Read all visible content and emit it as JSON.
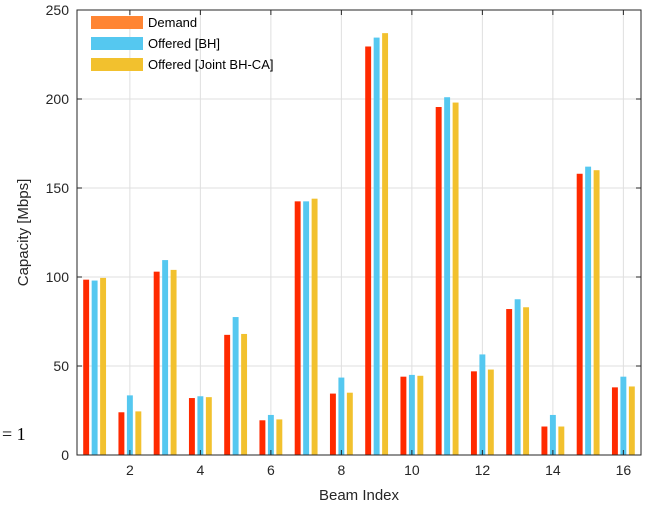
{
  "chart_data": {
    "type": "bar",
    "x": [
      1,
      2,
      3,
      4,
      5,
      6,
      7,
      8,
      9,
      10,
      11,
      12,
      13,
      14,
      15,
      16
    ],
    "xticks": [
      "2",
      "4",
      "6",
      "8",
      "10",
      "12",
      "14",
      "16"
    ],
    "xtick_values": [
      2,
      4,
      6,
      8,
      10,
      12,
      14,
      16
    ],
    "yticks": [
      "0",
      "50",
      "100",
      "150",
      "200",
      "250"
    ],
    "ytick_values": [
      0,
      50,
      100,
      150,
      200,
      250
    ],
    "xlabel": "Beam Index",
    "ylabel": "Capacity [Mbps]",
    "xlim": [
      0.5,
      16.5
    ],
    "ylim": [
      0,
      250
    ],
    "grid": true,
    "legend_position": "top-left",
    "series": [
      {
        "name": "Demand",
        "color": "#ff2a00",
        "legend_color": "#ff8533",
        "values": [
          98.5,
          24,
          103,
          32,
          67.5,
          19.5,
          142.5,
          34.5,
          229.5,
          44,
          195.5,
          47,
          82,
          16,
          158,
          38
        ]
      },
      {
        "name": "Offered [BH]",
        "color": "#55c8f0",
        "legend_color": "#55c8f0",
        "values": [
          98,
          33.5,
          109.5,
          33,
          77.5,
          22.5,
          142.5,
          43.5,
          234.5,
          45,
          201,
          56.5,
          87.5,
          22.5,
          162,
          44
        ]
      },
      {
        "name": "Offered [Joint BH-CA]",
        "color": "#f2c12e",
        "legend_color": "#f2c12e",
        "values": [
          99.5,
          24.5,
          104,
          32.5,
          68,
          20,
          144,
          35,
          237,
          44.5,
          198,
          48,
          83,
          16,
          160,
          38.5
        ]
      }
    ]
  },
  "margin_note": "= 1"
}
